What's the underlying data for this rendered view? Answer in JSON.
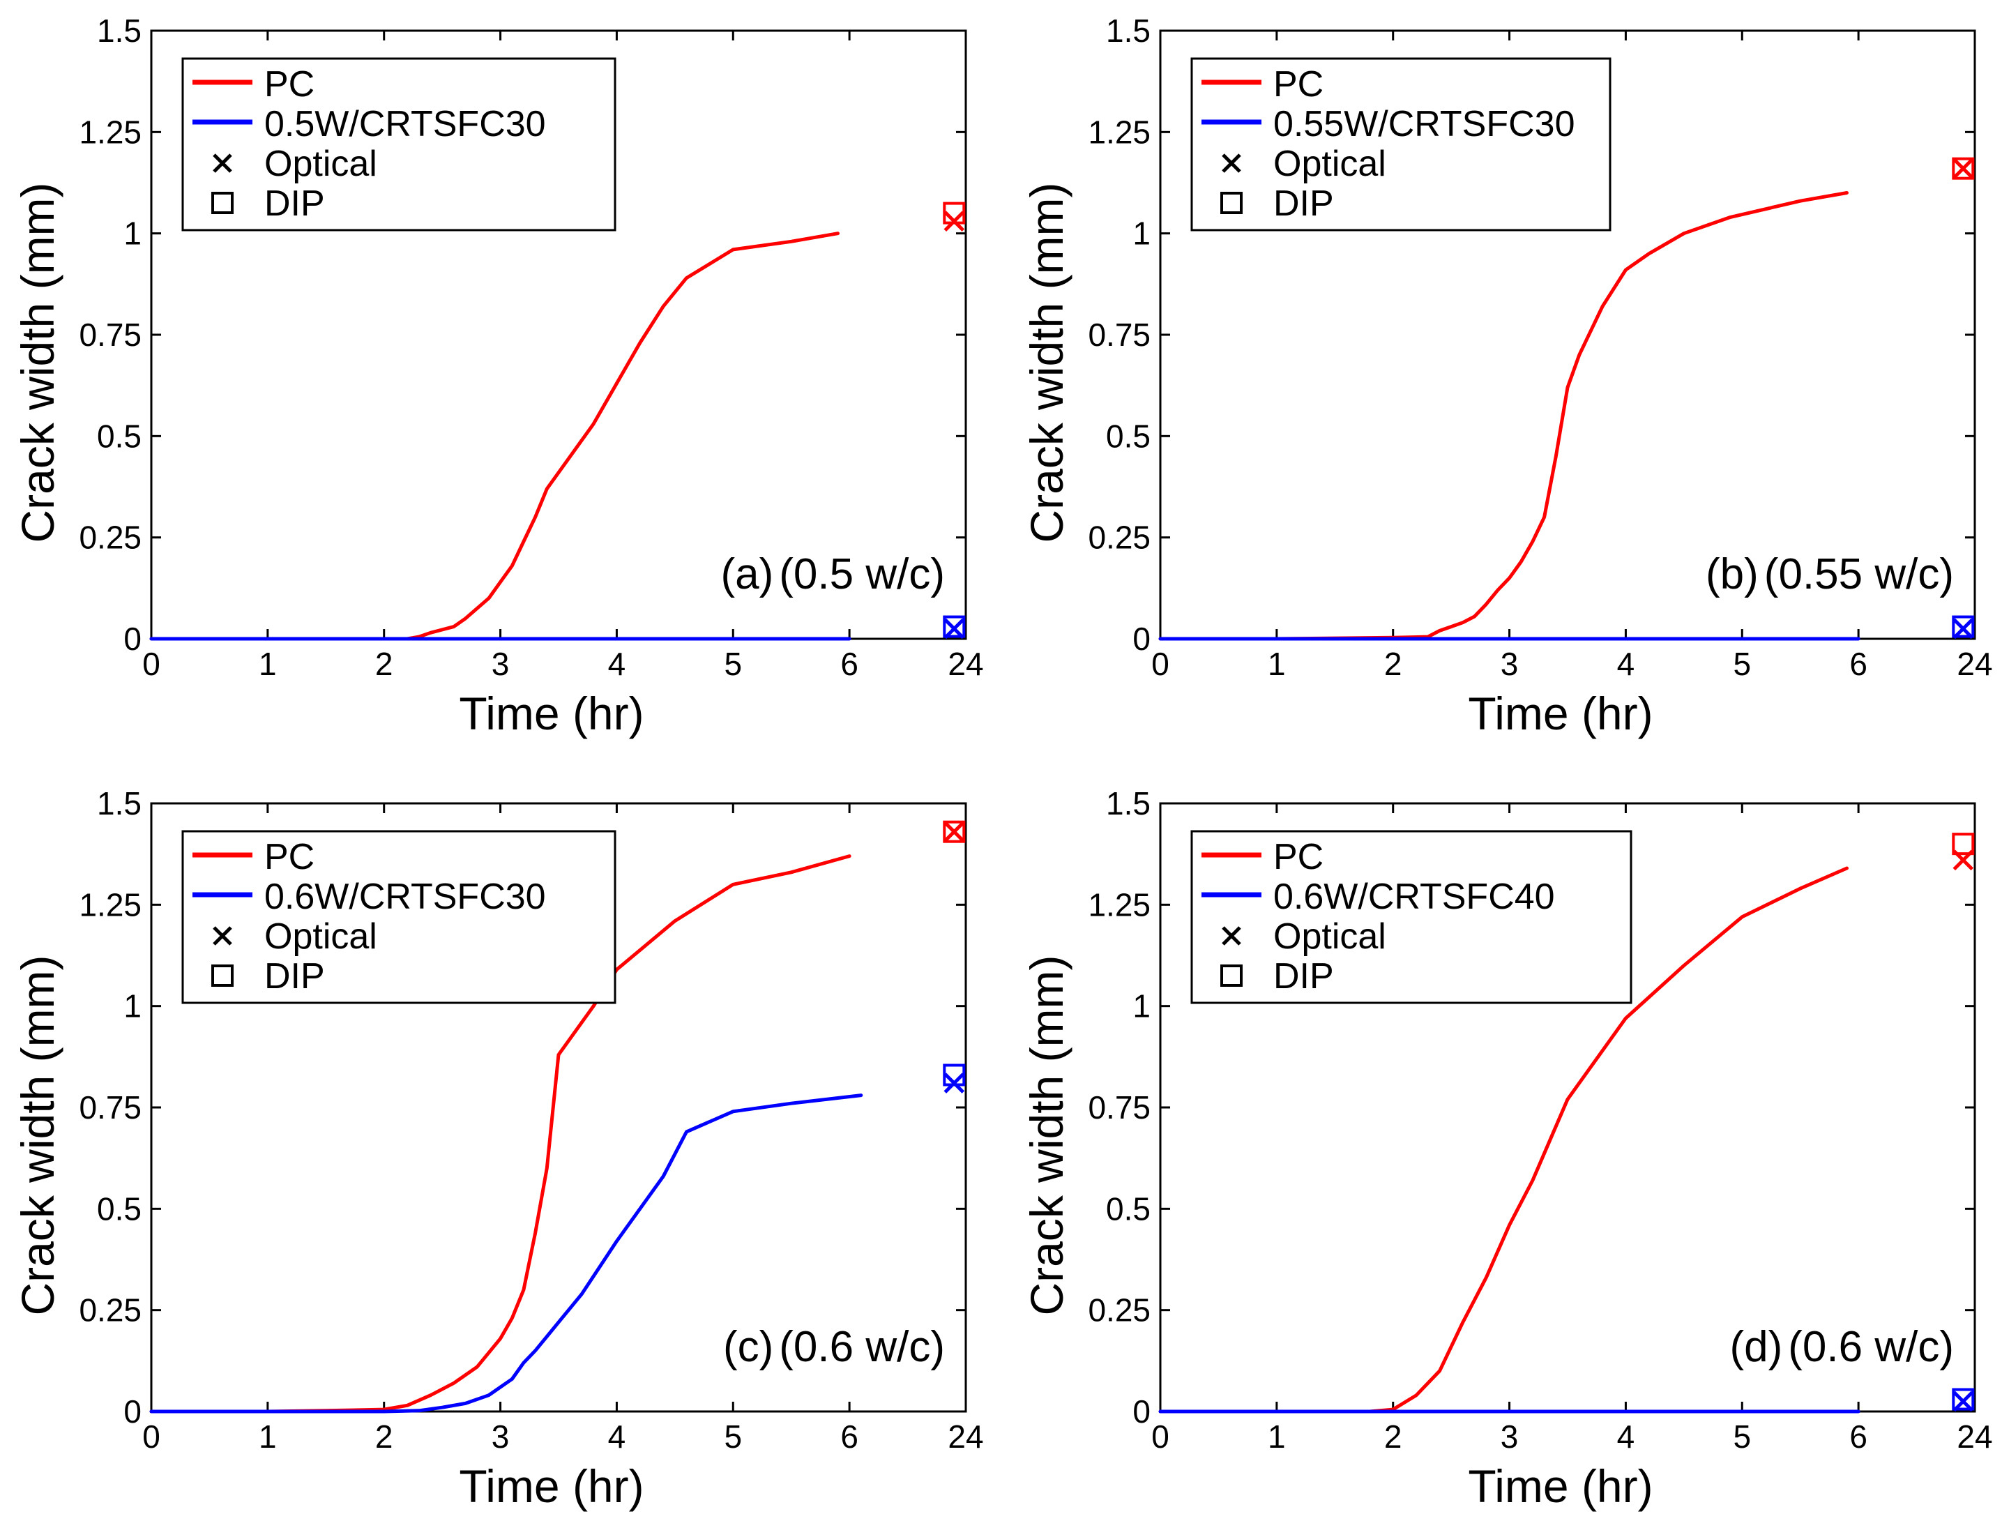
{
  "chart_data": [
    {
      "type": "line",
      "panel_label": "(a)",
      "condition": "(0.5 w/c)",
      "xlabel": "Time (hr)",
      "ylabel": "Crack width (mm)",
      "xticks": [
        "0",
        "1",
        "2",
        "3",
        "4",
        "5",
        "6",
        "24"
      ],
      "yticks": [
        "0",
        "0.25",
        "0.5",
        "0.75",
        "1",
        "1.25",
        "1.5"
      ],
      "xlim": [
        0,
        7
      ],
      "ylim": [
        0,
        1.5
      ],
      "legend_position": "top-left",
      "series": [
        {
          "name": "PC",
          "color": "#ff0000",
          "x": [
            0,
            1,
            2,
            2.2,
            2.3,
            2.4,
            2.6,
            2.7,
            2.8,
            2.9,
            3.0,
            3.1,
            3.2,
            3.3,
            3.4,
            3.6,
            3.8,
            4.0,
            4.2,
            4.4,
            4.6,
            5.0,
            5.5,
            5.9
          ],
          "y": [
            0,
            0,
            0,
            0,
            0.005,
            0.015,
            0.03,
            0.05,
            0.075,
            0.1,
            0.14,
            0.18,
            0.24,
            0.3,
            0.37,
            0.45,
            0.53,
            0.63,
            0.73,
            0.82,
            0.89,
            0.96,
            0.98,
            1.0
          ]
        },
        {
          "name": "0.5W/CRTSFC30",
          "color": "#0000ff",
          "x": [
            0,
            1,
            2,
            3,
            4,
            5,
            6
          ],
          "y": [
            0,
            0,
            0,
            0,
            0,
            0,
            0
          ]
        }
      ],
      "measurements_24h": [
        {
          "series": "PC",
          "color": "#ff0000",
          "optical": 1.03,
          "dip": 1.05
        },
        {
          "series": "0.5W/CRTSFC30",
          "color": "#0000ff",
          "optical": 0.025,
          "dip": 0.03
        }
      ],
      "legend": {
        "series": [
          "PC",
          "0.5W/CRTSFC30"
        ],
        "optical": "Optical",
        "dip": "DIP"
      }
    },
    {
      "type": "line",
      "panel_label": "(b)",
      "condition": "(0.55 w/c)",
      "xlabel": "Time (hr)",
      "ylabel": "Crack width (mm)",
      "xticks": [
        "0",
        "1",
        "2",
        "3",
        "4",
        "5",
        "6",
        "24"
      ],
      "yticks": [
        "0",
        "0.25",
        "0.5",
        "0.75",
        "1",
        "1.25",
        "1.5"
      ],
      "xlim": [
        0,
        7
      ],
      "ylim": [
        0,
        1.5
      ],
      "legend_position": "top-left",
      "series": [
        {
          "name": "PC",
          "color": "#ff0000",
          "x": [
            0,
            1,
            2,
            2.3,
            2.4,
            2.5,
            2.6,
            2.7,
            2.8,
            2.9,
            3.0,
            3.1,
            3.2,
            3.3,
            3.4,
            3.5,
            3.6,
            3.8,
            4.0,
            4.2,
            4.5,
            4.9,
            5.5,
            5.9
          ],
          "y": [
            0,
            0,
            0.003,
            0.005,
            0.02,
            0.03,
            0.04,
            0.055,
            0.085,
            0.12,
            0.15,
            0.19,
            0.24,
            0.3,
            0.45,
            0.62,
            0.7,
            0.82,
            0.91,
            0.95,
            1.0,
            1.04,
            1.08,
            1.1
          ]
        },
        {
          "name": "0.55W/CRTSFC30",
          "color": "#0000ff",
          "x": [
            0,
            1,
            2,
            3,
            4,
            5,
            6
          ],
          "y": [
            0,
            0,
            0,
            0,
            0,
            0,
            0
          ]
        }
      ],
      "measurements_24h": [
        {
          "series": "PC",
          "color": "#ff0000",
          "optical": 1.16,
          "dip": 1.16
        },
        {
          "series": "0.55W/CRTSFC30",
          "color": "#0000ff",
          "optical": 0.025,
          "dip": 0.03
        }
      ],
      "legend": {
        "series": [
          "PC",
          "0.55W/CRTSFC30"
        ],
        "optical": "Optical",
        "dip": "DIP"
      }
    },
    {
      "type": "line",
      "panel_label": "(c)",
      "condition": "(0.6 w/c)",
      "xlabel": "Time (hr)",
      "ylabel": "Crack width (mm)",
      "xticks": [
        "0",
        "1",
        "2",
        "3",
        "4",
        "5",
        "6",
        "24"
      ],
      "yticks": [
        "0",
        "0.25",
        "0.5",
        "0.75",
        "1",
        "1.25",
        "1.5"
      ],
      "xlim": [
        0,
        7
      ],
      "ylim": [
        0,
        1.5
      ],
      "legend_position": "top-left",
      "series": [
        {
          "name": "PC",
          "color": "#ff0000",
          "x": [
            0,
            1,
            1.5,
            2,
            2.2,
            2.4,
            2.6,
            2.8,
            3.0,
            3.1,
            3.2,
            3.3,
            3.4,
            3.5,
            3.8,
            4.0,
            4.5,
            5.0,
            5.5,
            6.0
          ],
          "y": [
            0,
            0,
            0.002,
            0.005,
            0.015,
            0.04,
            0.07,
            0.11,
            0.18,
            0.23,
            0.3,
            0.44,
            0.6,
            0.88,
            1.0,
            1.09,
            1.21,
            1.3,
            1.33,
            1.37
          ]
        },
        {
          "name": "0.6W/CRTSFC30",
          "color": "#0000ff",
          "x": [
            0,
            1,
            2,
            2.3,
            2.5,
            2.7,
            2.9,
            3.0,
            3.1,
            3.2,
            3.3,
            3.5,
            3.7,
            4.0,
            4.2,
            4.4,
            4.6,
            5.0,
            5.5,
            6.1
          ],
          "y": [
            0,
            0,
            0,
            0.002,
            0.01,
            0.02,
            0.04,
            0.06,
            0.08,
            0.12,
            0.15,
            0.22,
            0.29,
            0.42,
            0.5,
            0.58,
            0.69,
            0.74,
            0.76,
            0.78
          ]
        }
      ],
      "measurements_24h": [
        {
          "series": "PC",
          "color": "#ff0000",
          "optical": 1.43,
          "dip": 1.43
        },
        {
          "series": "0.6W/CRTSFC30",
          "color": "#0000ff",
          "optical": 0.81,
          "dip": 0.83
        }
      ],
      "legend": {
        "series": [
          "PC",
          "0.6W/CRTSFC30"
        ],
        "optical": "Optical",
        "dip": "DIP"
      }
    },
    {
      "type": "line",
      "panel_label": "(d)",
      "condition": "(0.6 w/c)",
      "xlabel": "Time (hr)",
      "ylabel": "Crack width (mm)",
      "xticks": [
        "0",
        "1",
        "2",
        "3",
        "4",
        "5",
        "6",
        "24"
      ],
      "yticks": [
        "0",
        "0.25",
        "0.5",
        "0.75",
        "1",
        "1.25",
        "1.5"
      ],
      "xlim": [
        0,
        7
      ],
      "ylim": [
        0,
        1.5
      ],
      "legend_position": "top-left",
      "series": [
        {
          "name": "PC",
          "color": "#ff0000",
          "x": [
            0,
            1,
            1.8,
            2.0,
            2.2,
            2.4,
            2.6,
            2.8,
            3.0,
            3.2,
            3.5,
            4.0,
            4.5,
            5.0,
            5.5,
            5.9
          ],
          "y": [
            0,
            0,
            0,
            0.005,
            0.04,
            0.1,
            0.22,
            0.33,
            0.46,
            0.57,
            0.77,
            0.97,
            1.1,
            1.22,
            1.29,
            1.34
          ]
        },
        {
          "name": "0.6W/CRTSFC40",
          "color": "#0000ff",
          "x": [
            0,
            1,
            2,
            3,
            4,
            5,
            6
          ],
          "y": [
            0,
            0,
            0,
            0,
            0,
            0,
            0
          ]
        }
      ],
      "measurements_24h": [
        {
          "series": "PC",
          "color": "#ff0000",
          "optical": 1.36,
          "dip": 1.4
        },
        {
          "series": "0.6W/CRTSFC40",
          "color": "#0000ff",
          "optical": 0.025,
          "dip": 0.03
        }
      ],
      "legend": {
        "series": [
          "PC",
          "0.6W/CRTSFC40"
        ],
        "optical": "Optical",
        "dip": "DIP"
      }
    }
  ]
}
